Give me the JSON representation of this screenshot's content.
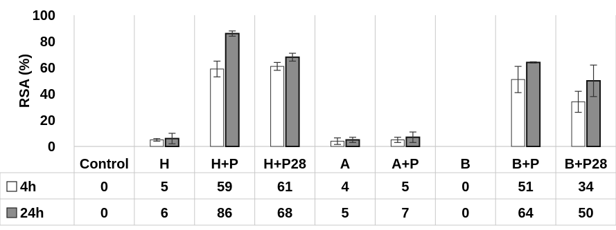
{
  "chart_data": {
    "type": "bar",
    "ylabel": "RSA (%)",
    "ylim": [
      0,
      100
    ],
    "yticks": [
      0,
      20,
      40,
      60,
      80,
      100
    ],
    "categories": [
      "Control",
      "H",
      "H+P",
      "H+P28",
      "A",
      "A+P",
      "B",
      "B+P",
      "B+P28"
    ],
    "series": [
      {
        "name": "4h",
        "color": "#ffffff",
        "values": [
          0,
          5,
          59,
          61,
          4,
          5,
          0,
          51,
          34
        ],
        "error": [
          0,
          1,
          6,
          3,
          2.5,
          2,
          0,
          10,
          8
        ]
      },
      {
        "name": "24h",
        "color": "#8c8c8c",
        "values": [
          0,
          6,
          86,
          68,
          5,
          7,
          0,
          64,
          50
        ],
        "error": [
          0,
          4,
          2,
          3,
          2,
          4,
          0,
          0.5,
          12
        ]
      }
    ],
    "legend_position": "data-table",
    "grid": "vertical-category-lines"
  }
}
